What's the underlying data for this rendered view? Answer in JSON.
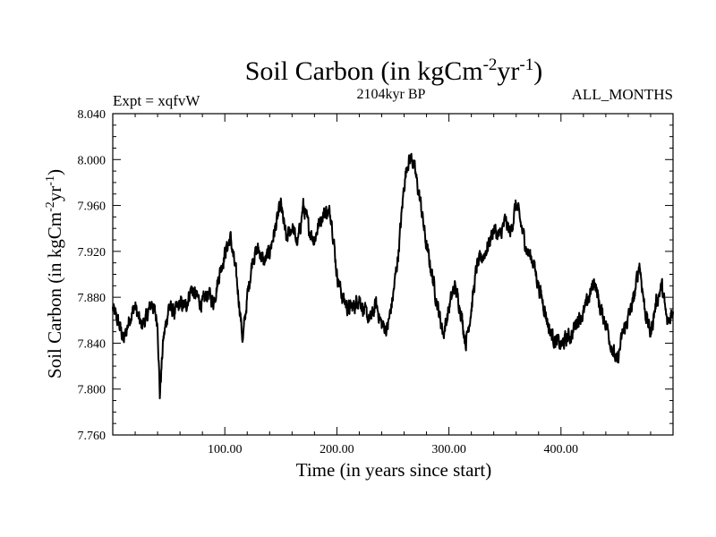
{
  "chart_data": {
    "type": "line",
    "title": "Soil Carbon (in kgCm",
    "title_sup1": "-2",
    "title_mid": "yr",
    "title_sup2": "-1",
    "title_end": ")",
    "subtitle_left": "Expt = xqfvW",
    "subtitle_center": "2104kyr BP",
    "subtitle_right": "ALL_MONTHS",
    "xlabel": "Time (in years since start)",
    "ylabel": "Soil Carbon (in kgCm",
    "ylabel_sup1": "-2",
    "ylabel_mid": "yr",
    "ylabel_sup2": "-1",
    "ylabel_end": ")",
    "xlim": [
      0,
      500
    ],
    "ylim": [
      7.76,
      8.04
    ],
    "x_ticks": [
      100,
      200,
      300,
      400
    ],
    "x_tick_labels": [
      "100.00",
      "200.00",
      "300.00",
      "400.00"
    ],
    "y_ticks": [
      7.76,
      7.8,
      7.84,
      7.88,
      7.92,
      7.96,
      8.0,
      8.04
    ],
    "y_tick_labels": [
      "7.760",
      "7.800",
      "7.840",
      "7.880",
      "7.920",
      "7.960",
      "8.000",
      "8.040"
    ],
    "series": [
      {
        "name": "Soil Carbon",
        "color": "#000000",
        "x": [
          0,
          5,
          10,
          15,
          20,
          25,
          30,
          35,
          40,
          42,
          45,
          50,
          55,
          60,
          65,
          70,
          75,
          80,
          85,
          90,
          95,
          100,
          105,
          110,
          113,
          116,
          120,
          125,
          130,
          135,
          140,
          145,
          150,
          155,
          160,
          165,
          170,
          175,
          180,
          185,
          190,
          195,
          200,
          205,
          210,
          215,
          220,
          225,
          230,
          235,
          240,
          245,
          250,
          255,
          260,
          263,
          267,
          270,
          275,
          280,
          285,
          290,
          295,
          300,
          305,
          310,
          315,
          320,
          325,
          330,
          335,
          340,
          345,
          350,
          355,
          360,
          365,
          370,
          375,
          380,
          385,
          390,
          395,
          400,
          405,
          410,
          415,
          420,
          425,
          430,
          435,
          440,
          445,
          450,
          455,
          460,
          465,
          470,
          475,
          480,
          485,
          490,
          495,
          500
        ],
        "values": [
          7.87,
          7.858,
          7.842,
          7.862,
          7.872,
          7.855,
          7.862,
          7.876,
          7.858,
          7.795,
          7.842,
          7.872,
          7.866,
          7.874,
          7.872,
          7.888,
          7.88,
          7.874,
          7.884,
          7.876,
          7.9,
          7.918,
          7.932,
          7.9,
          7.874,
          7.842,
          7.88,
          7.915,
          7.922,
          7.91,
          7.92,
          7.94,
          7.96,
          7.93,
          7.942,
          7.926,
          7.96,
          7.94,
          7.93,
          7.948,
          7.955,
          7.952,
          7.9,
          7.88,
          7.87,
          7.872,
          7.88,
          7.866,
          7.86,
          7.874,
          7.856,
          7.852,
          7.88,
          7.92,
          7.978,
          7.998,
          8.002,
          7.988,
          7.96,
          7.924,
          7.9,
          7.872,
          7.848,
          7.87,
          7.89,
          7.872,
          7.84,
          7.87,
          7.908,
          7.915,
          7.925,
          7.94,
          7.932,
          7.946,
          7.936,
          7.962,
          7.94,
          7.92,
          7.912,
          7.89,
          7.872,
          7.85,
          7.842,
          7.838,
          7.844,
          7.848,
          7.862,
          7.865,
          7.88,
          7.895,
          7.87,
          7.858,
          7.838,
          7.822,
          7.848,
          7.862,
          7.878,
          7.91,
          7.868,
          7.848,
          7.876,
          7.89,
          7.856,
          7.87
        ]
      }
    ]
  }
}
